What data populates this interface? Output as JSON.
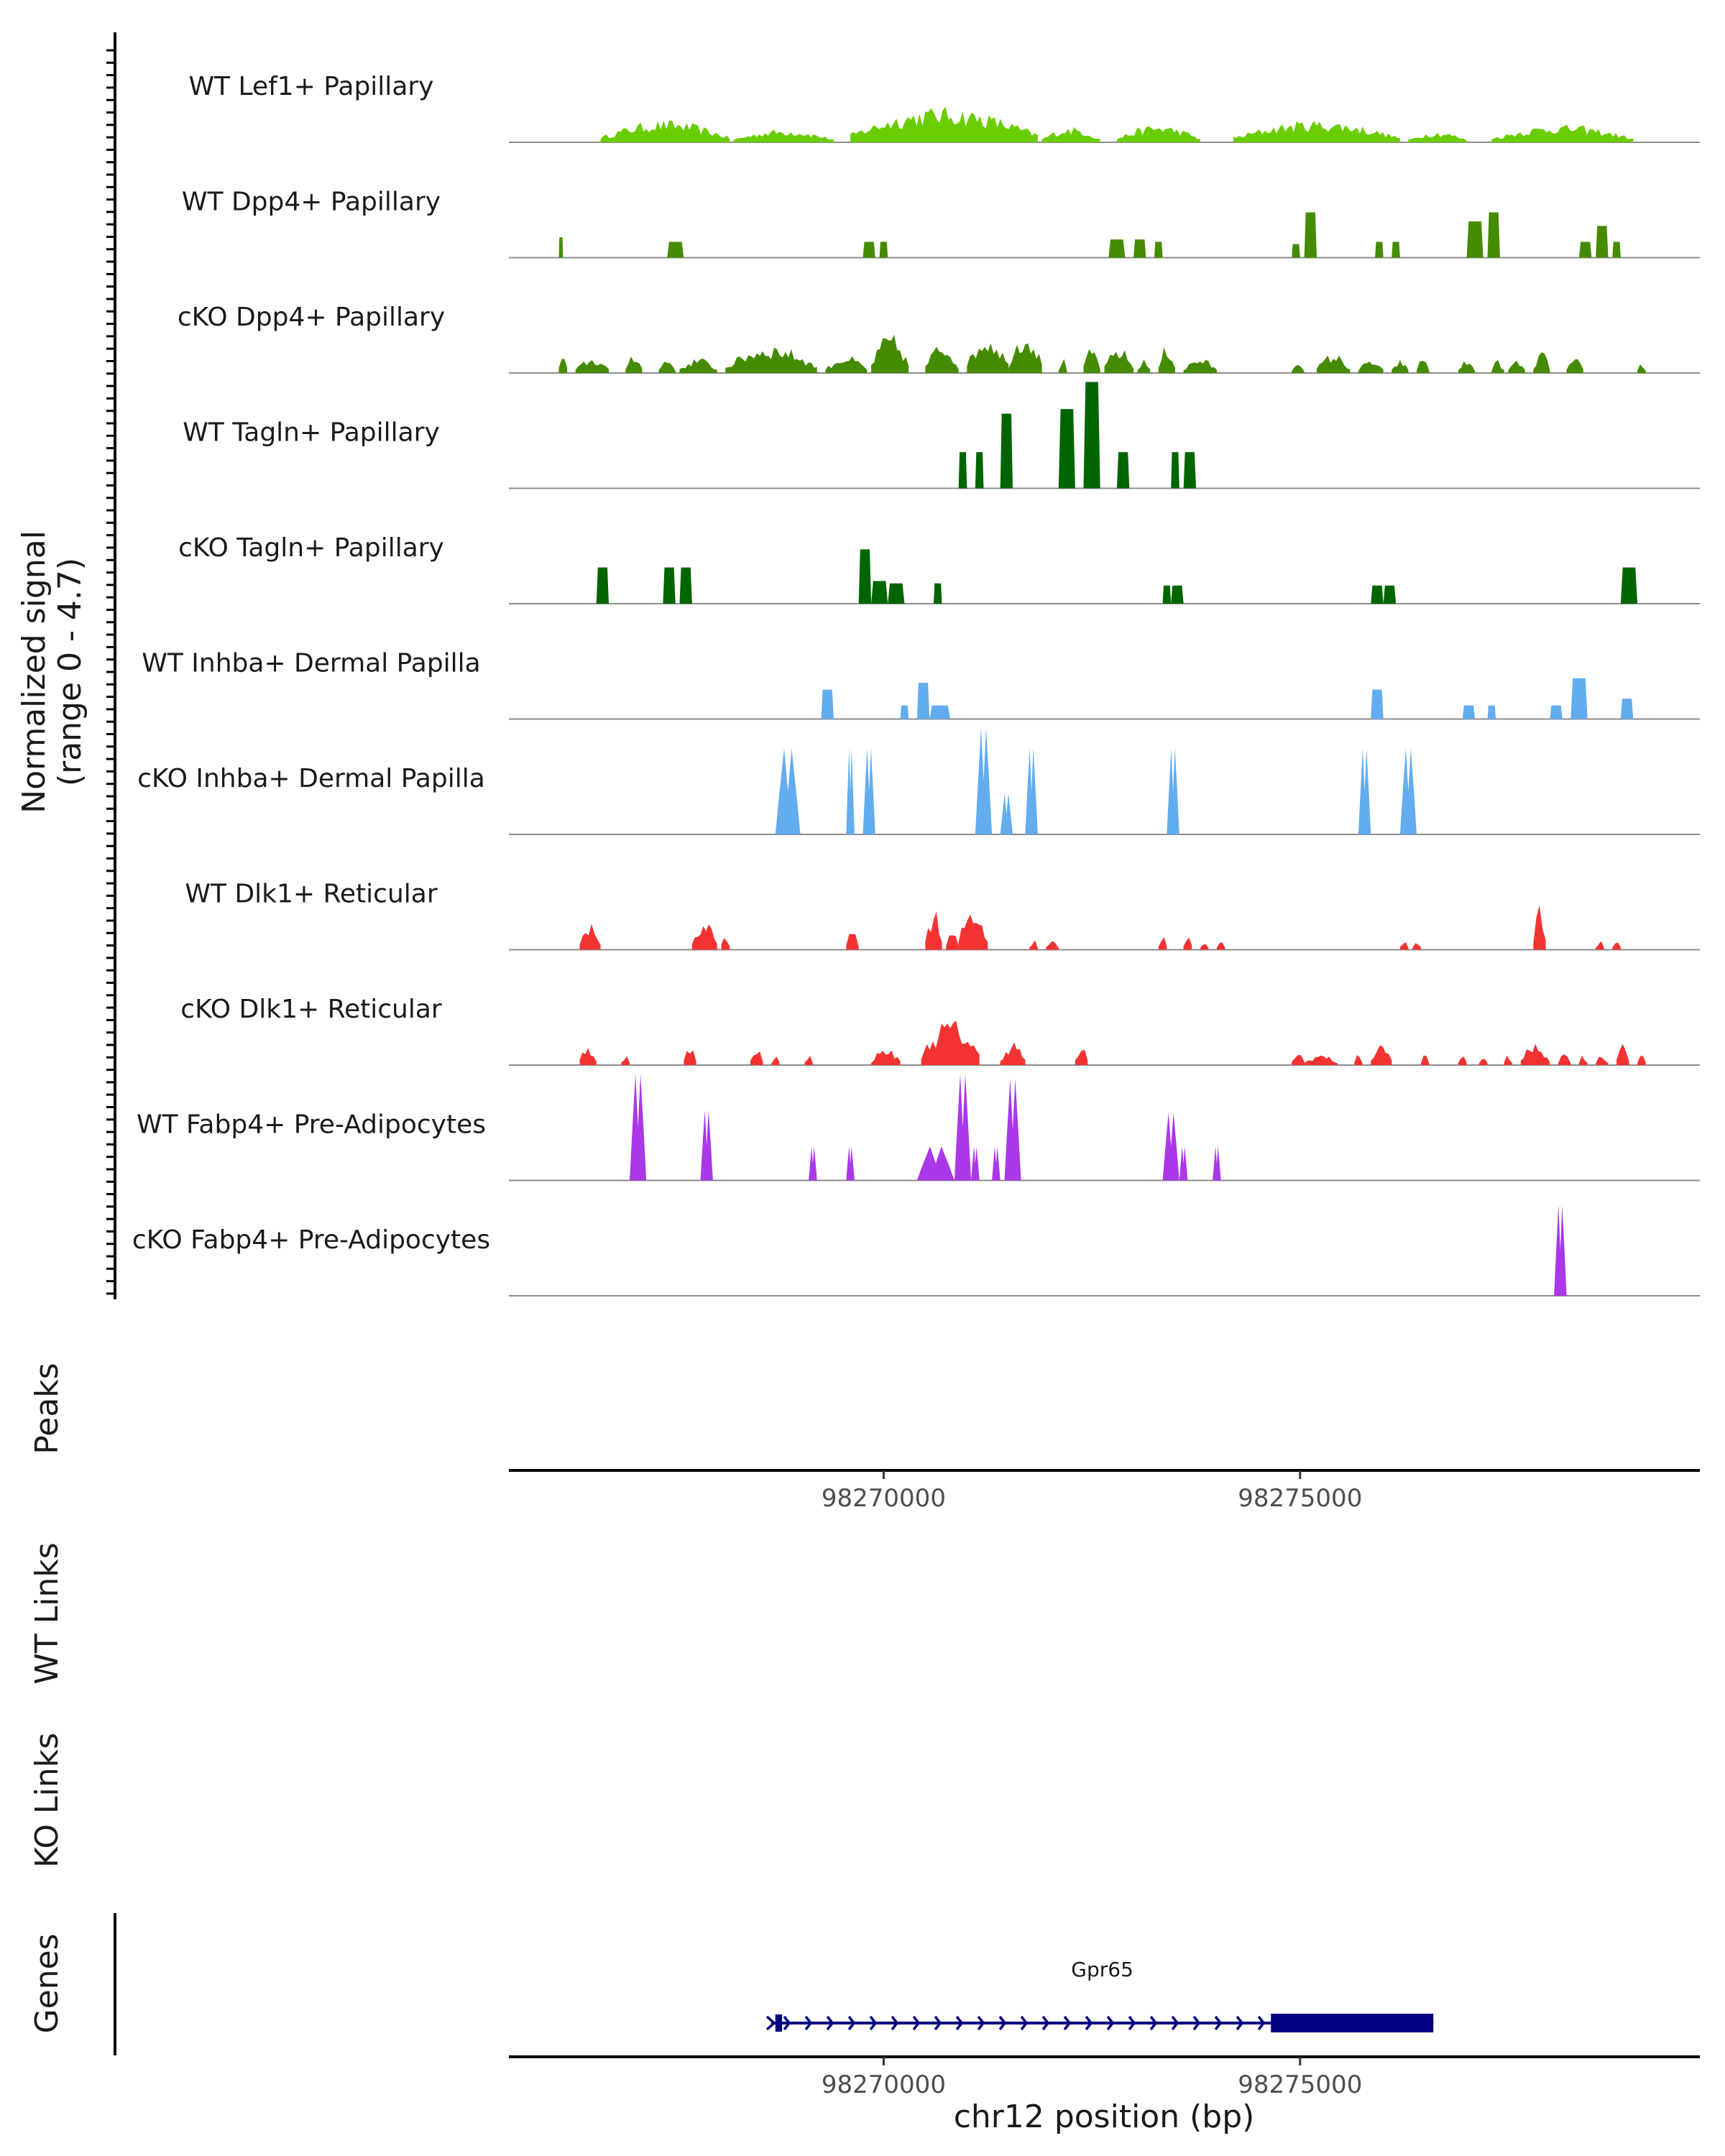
{
  "chart_data": {
    "type": "area",
    "title": "",
    "y_axis_title_line1": "Normalized signal",
    "y_axis_title_line2": "(range 0 - 4.7)",
    "ylim": [
      0,
      4.7
    ],
    "xlabel": "chr12 position (bp)",
    "xlim": [
      98265500,
      98279800
    ],
    "x_ticks": [
      {
        "value": 98270000,
        "label": "98270000"
      },
      {
        "value": 98275000,
        "label": "98275000"
      }
    ],
    "tracks": [
      {
        "name": "WT Lef1+ Papillary",
        "color": "#6ACD00",
        "style": "dense",
        "regions": [
          [
            98266600,
            98268150,
            1.0
          ],
          [
            98268200,
            98269400,
            0.6
          ],
          [
            98269600,
            98271850,
            1.6
          ],
          [
            98271900,
            98272600,
            0.7
          ],
          [
            98272800,
            98273800,
            0.8
          ],
          [
            98274200,
            98276200,
            1.0
          ],
          [
            98276300,
            98277000,
            0.5
          ],
          [
            98277300,
            98279000,
            0.8
          ]
        ]
      },
      {
        "name": "WT Dpp4+ Papillary",
        "color": "#458B00",
        "style": "blocks",
        "regions": [
          [
            98266100,
            98266150,
            0.9
          ],
          [
            98267400,
            98267600,
            0.7
          ],
          [
            98269750,
            98269900,
            0.7
          ],
          [
            98269950,
            98270050,
            0.7
          ],
          [
            98272700,
            98272900,
            0.8
          ],
          [
            98273000,
            98273150,
            0.8
          ],
          [
            98273250,
            98273350,
            0.7
          ],
          [
            98274900,
            98275000,
            0.6
          ],
          [
            98275050,
            98275200,
            2.0
          ],
          [
            98275900,
            98276000,
            0.7
          ],
          [
            98276100,
            98276200,
            0.7
          ],
          [
            98277000,
            98277200,
            1.6
          ],
          [
            98277250,
            98277400,
            2.0
          ],
          [
            98278350,
            98278500,
            0.7
          ],
          [
            98278550,
            98278700,
            1.4
          ],
          [
            98278750,
            98278850,
            0.7
          ]
        ]
      },
      {
        "name": "cKO Dpp4+ Papillary",
        "color": "#458B00",
        "style": "dense",
        "regions": [
          [
            98266100,
            98266200,
            1.0
          ],
          [
            98266300,
            98266700,
            0.7
          ],
          [
            98266900,
            98267100,
            1.0
          ],
          [
            98267300,
            98267500,
            0.7
          ],
          [
            98267550,
            98268000,
            0.7
          ],
          [
            98268100,
            98269200,
            1.3
          ],
          [
            98269300,
            98269800,
            0.8
          ],
          [
            98269850,
            98270300,
            1.8
          ],
          [
            98270500,
            98270900,
            1.4
          ],
          [
            98271000,
            98271500,
            1.8
          ],
          [
            98271500,
            98271900,
            2.0
          ],
          [
            98272100,
            98272200,
            0.7
          ],
          [
            98272400,
            98272600,
            1.2
          ],
          [
            98272650,
            98273000,
            1.2
          ],
          [
            98273050,
            98273200,
            0.7
          ],
          [
            98273300,
            98273500,
            1.3
          ],
          [
            98273600,
            98274000,
            0.7
          ],
          [
            98274900,
            98275050,
            0.6
          ],
          [
            98275200,
            98275600,
            0.9
          ],
          [
            98275700,
            98276000,
            0.6
          ],
          [
            98276100,
            98276300,
            0.6
          ],
          [
            98276400,
            98276550,
            0.8
          ],
          [
            98276900,
            98277100,
            0.6
          ],
          [
            98277300,
            98277450,
            0.6
          ],
          [
            98277500,
            98277700,
            0.6
          ],
          [
            98277800,
            98278000,
            1.0
          ],
          [
            98278200,
            98278400,
            0.7
          ],
          [
            98279050,
            98279150,
            0.5
          ]
        ]
      },
      {
        "name": "WT Tagln+ Papillary",
        "color": "#006400",
        "style": "blocks",
        "regions": [
          [
            98270900,
            98271000,
            1.6
          ],
          [
            98271100,
            98271200,
            1.6
          ],
          [
            98271400,
            98271550,
            3.3
          ],
          [
            98272100,
            98272300,
            3.5
          ],
          [
            98272400,
            98272600,
            4.7
          ],
          [
            98272800,
            98272950,
            1.6
          ],
          [
            98273450,
            98273550,
            1.6
          ],
          [
            98273600,
            98273750,
            1.6
          ]
        ]
      },
      {
        "name": "cKO Tagln+ Papillary",
        "color": "#006400",
        "style": "blocks",
        "regions": [
          [
            98266550,
            98266700,
            1.6
          ],
          [
            98267350,
            98267500,
            1.6
          ],
          [
            98267550,
            98267700,
            1.6
          ],
          [
            98269700,
            98269850,
            2.4
          ],
          [
            98269850,
            98270050,
            1.0
          ],
          [
            98270050,
            98270250,
            0.9
          ],
          [
            98270600,
            98270700,
            0.9
          ],
          [
            98273350,
            98273450,
            0.8
          ],
          [
            98273450,
            98273600,
            0.8
          ],
          [
            98275850,
            98276000,
            0.8
          ],
          [
            98276000,
            98276150,
            0.8
          ],
          [
            98278850,
            98279050,
            1.6
          ]
        ]
      },
      {
        "name": "WT Inhba+ Dermal Papilla",
        "color": "#63ACEE",
        "style": "blocks",
        "regions": [
          [
            98269250,
            98269400,
            1.3
          ],
          [
            98270200,
            98270300,
            0.6
          ],
          [
            98270400,
            98270550,
            1.6
          ],
          [
            98270550,
            98270800,
            0.6
          ],
          [
            98275850,
            98276000,
            1.3
          ],
          [
            98276950,
            98277100,
            0.6
          ],
          [
            98277250,
            98277350,
            0.6
          ],
          [
            98278000,
            98278150,
            0.6
          ],
          [
            98278250,
            98278450,
            1.8
          ],
          [
            98278850,
            98279000,
            0.9
          ]
        ]
      },
      {
        "name": "cKO Inhba+ Dermal Papilla",
        "color": "#63ACEE",
        "style": "spikes",
        "regions": [
          [
            98268700,
            98269000,
            3.8
          ],
          [
            98269550,
            98269650,
            3.8
          ],
          [
            98269750,
            98269900,
            3.8
          ],
          [
            98271100,
            98271300,
            4.7
          ],
          [
            98271400,
            98271550,
            1.8
          ],
          [
            98271700,
            98271850,
            3.8
          ],
          [
            98273400,
            98273550,
            3.8
          ],
          [
            98275700,
            98275850,
            3.8
          ],
          [
            98276200,
            98276400,
            3.8
          ]
        ]
      },
      {
        "name": "WT Dlk1+ Reticular",
        "color": "#F33232",
        "style": "dense",
        "regions": [
          [
            98266350,
            98266600,
            1.3
          ],
          [
            98267700,
            98268000,
            1.3
          ],
          [
            98268050,
            98268150,
            0.9
          ],
          [
            98269550,
            98269700,
            0.9
          ],
          [
            98270500,
            98270700,
            1.9
          ],
          [
            98270750,
            98270900,
            0.9
          ],
          [
            98270900,
            98271250,
            2.1
          ],
          [
            98271750,
            98271850,
            0.5
          ],
          [
            98271950,
            98272100,
            0.5
          ],
          [
            98273300,
            98273400,
            0.9
          ],
          [
            98273600,
            98273700,
            0.9
          ],
          [
            98273800,
            98273900,
            0.5
          ],
          [
            98274000,
            98274100,
            0.5
          ],
          [
            98276200,
            98276300,
            0.5
          ],
          [
            98276350,
            98276450,
            0.5
          ],
          [
            98277800,
            98277950,
            2.0
          ],
          [
            98278550,
            98278650,
            0.5
          ],
          [
            98278750,
            98278850,
            0.5
          ]
        ]
      },
      {
        "name": "cKO Dlk1+ Reticular",
        "color": "#F33232",
        "style": "dense",
        "regions": [
          [
            98266350,
            98266550,
            1.0
          ],
          [
            98266850,
            98266950,
            0.5
          ],
          [
            98267600,
            98267750,
            0.9
          ],
          [
            98268400,
            98268550,
            0.9
          ],
          [
            98268650,
            98268750,
            0.5
          ],
          [
            98269050,
            98269150,
            0.5
          ],
          [
            98269850,
            98270200,
            0.8
          ],
          [
            98270450,
            98271150,
            2.1
          ],
          [
            98271400,
            98271700,
            1.1
          ],
          [
            98272300,
            98272450,
            0.9
          ],
          [
            98274900,
            98275050,
            0.7
          ],
          [
            98275050,
            98275450,
            0.5
          ],
          [
            98275650,
            98275750,
            0.5
          ],
          [
            98275850,
            98276100,
            1.0
          ],
          [
            98276450,
            98276550,
            0.5
          ],
          [
            98276900,
            98277000,
            0.5
          ],
          [
            98277150,
            98277250,
            0.5
          ],
          [
            98277450,
            98277550,
            0.5
          ],
          [
            98277650,
            98278000,
            1.0
          ],
          [
            98278100,
            98278250,
            0.6
          ],
          [
            98278350,
            98278450,
            0.5
          ],
          [
            98278550,
            98278700,
            0.5
          ],
          [
            98278800,
            98278950,
            1.3
          ],
          [
            98279050,
            98279150,
            0.5
          ]
        ]
      },
      {
        "name": "WT Fabp4+ Pre-Adipocytes",
        "color": "#AA38E8",
        "style": "spikes",
        "regions": [
          [
            98266950,
            98267150,
            4.7
          ],
          [
            98267800,
            98267950,
            3.1
          ],
          [
            98269100,
            98269200,
            1.5
          ],
          [
            98269550,
            98269650,
            1.5
          ],
          [
            98270400,
            98270850,
            1.5
          ],
          [
            98270850,
            98271050,
            4.7
          ],
          [
            98271050,
            98271150,
            1.5
          ],
          [
            98271300,
            98271400,
            1.5
          ],
          [
            98271450,
            98271650,
            4.5
          ],
          [
            98273350,
            98273550,
            3.0
          ],
          [
            98273550,
            98273650,
            1.5
          ],
          [
            98273950,
            98274050,
            1.5
          ]
        ]
      },
      {
        "name": "cKO Fabp4+ Pre-Adipocytes",
        "color": "#AA38E8",
        "style": "spikes",
        "regions": [
          [
            98278050,
            98278200,
            4.0
          ]
        ]
      }
    ],
    "peaks_label": "Peaks",
    "wt_links_label": "WT Links",
    "ko_links_label": "KO Links",
    "genes_label": "Genes",
    "gene": {
      "name": "Gpr65",
      "strand": "+",
      "start": 98268650,
      "end": 98276600,
      "first_exon": [
        98268700,
        98268780
      ],
      "last_exon": [
        98274650,
        98276600
      ],
      "color": "#000080"
    }
  }
}
